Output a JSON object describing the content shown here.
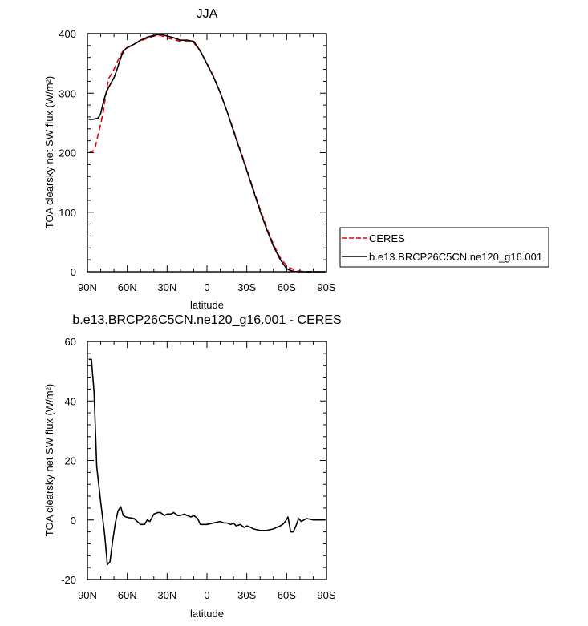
{
  "chart_data": [
    {
      "type": "line",
      "title": "JJA",
      "xlabel": "latitude",
      "ylabel": "TOA clearsky net SW flux (W/m²)",
      "xlim": [
        90,
        -90
      ],
      "ylim": [
        0,
        400
      ],
      "xticks": [
        90,
        60,
        30,
        0,
        -30,
        -60,
        -90
      ],
      "xtick_labels": [
        "90N",
        "60N",
        "30N",
        "0",
        "30S",
        "60S",
        "90S"
      ],
      "yticks": [
        0,
        100,
        200,
        300,
        400
      ],
      "ytick_labels": [
        "0",
        "100",
        "200",
        "300",
        "400"
      ],
      "grid": false,
      "legend": "right",
      "series": [
        {
          "name": "CERES",
          "color": "#e8000b",
          "dash": "dashed",
          "x": [
            89,
            86,
            84,
            82,
            80,
            78,
            76,
            74,
            72,
            70,
            68,
            66,
            64,
            62,
            60,
            55,
            50,
            45,
            40,
            35,
            30,
            25,
            20,
            15,
            10,
            5,
            0,
            -5,
            -10,
            -15,
            -20,
            -25,
            -30,
            -35,
            -40,
            -45,
            -50,
            -55,
            -60,
            -62,
            -64,
            -66,
            -68,
            -70,
            -72,
            -75,
            -80,
            -85,
            -89
          ],
          "y": [
            200,
            202,
            210,
            230,
            248,
            270,
            300,
            325,
            332,
            340,
            350,
            360,
            368,
            375,
            376,
            382,
            388,
            392,
            396,
            397,
            393,
            390,
            387,
            388,
            385,
            370,
            350,
            328,
            300,
            270,
            238,
            205,
            172,
            138,
            105,
            74,
            46,
            24,
            10,
            7,
            5,
            3,
            2,
            1,
            0.5,
            0.3,
            0,
            0,
            0
          ]
        },
        {
          "name": "b.e13.BRCP26C5CN.ne120_g16.001",
          "color": "#000000",
          "dash": "solid",
          "x": [
            89,
            86,
            84,
            82,
            80,
            78,
            76,
            74,
            72,
            70,
            68,
            66,
            64,
            62,
            60,
            55,
            50,
            45,
            40,
            35,
            30,
            25,
            20,
            15,
            10,
            5,
            0,
            -5,
            -10,
            -15,
            -20,
            -25,
            -30,
            -35,
            -40,
            -45,
            -50,
            -55,
            -60,
            -62,
            -64,
            -66,
            -68,
            -70,
            -72,
            -75,
            -80,
            -85,
            -89
          ],
          "y": [
            256,
            256,
            257,
            258,
            266,
            285,
            300,
            310,
            318,
            326,
            338,
            352,
            365,
            373,
            377,
            382,
            389,
            394,
            397,
            399,
            396,
            393,
            389,
            389,
            387,
            371,
            349,
            327,
            301,
            270,
            236,
            203,
            170,
            136,
            102,
            71,
            43,
            21,
            5,
            3,
            1.5,
            0.5,
            0.2,
            0,
            0,
            0,
            0,
            0,
            0
          ]
        }
      ]
    },
    {
      "type": "line",
      "title": "b.e13.BRCP26C5CN.ne120_g16.001 - CERES",
      "xlabel": "latitude",
      "ylabel": "TOA clearsky net SW flux (W/m²)",
      "xlim": [
        90,
        -90
      ],
      "ylim": [
        -20,
        60
      ],
      "xticks": [
        90,
        60,
        30,
        0,
        -30,
        -60,
        -90
      ],
      "xtick_labels": [
        "90N",
        "60N",
        "30N",
        "0",
        "30S",
        "60S",
        "90S"
      ],
      "yticks": [
        -20,
        0,
        20,
        40,
        60
      ],
      "ytick_labels": [
        "-20",
        "0",
        "20",
        "40",
        "60"
      ],
      "grid": false,
      "series": [
        {
          "color": "#000000",
          "dash": "solid",
          "x": [
            89,
            87,
            85,
            83,
            80,
            77,
            75,
            73,
            71,
            69,
            67,
            65,
            63,
            61,
            59,
            55,
            50,
            47,
            45,
            43,
            40,
            37,
            35,
            32,
            30,
            27,
            25,
            22,
            20,
            17,
            15,
            12,
            10,
            7,
            5,
            3,
            0,
            -5,
            -10,
            -13,
            -15,
            -18,
            -20,
            -22,
            -25,
            -28,
            -30,
            -33,
            -35,
            -40,
            -45,
            -50,
            -55,
            -57,
            -59,
            -61,
            -63,
            -65,
            -67,
            -69,
            -71,
            -73,
            -75,
            -80,
            -85,
            -89
          ],
          "y": [
            54,
            54,
            43,
            18,
            6,
            -5,
            -15,
            -14,
            -7,
            -1,
            3,
            4.5,
            1.5,
            1,
            0.8,
            0.5,
            -1.5,
            -1.5,
            0,
            -0.5,
            2,
            2.5,
            2.5,
            1.5,
            2,
            2,
            2.5,
            1.5,
            1.5,
            2,
            1.5,
            1,
            1.5,
            0.5,
            -1.5,
            -1.5,
            -1.5,
            -1,
            -0.5,
            -1,
            -1,
            -1.5,
            -1,
            -2,
            -1.5,
            -2.5,
            -2,
            -2.5,
            -3,
            -3.5,
            -3.5,
            -3,
            -2,
            -1.5,
            -0.5,
            1,
            -4,
            -4,
            -2,
            0.5,
            -0.5,
            0,
            0.5,
            0,
            0,
            0
          ]
        }
      ]
    }
  ]
}
